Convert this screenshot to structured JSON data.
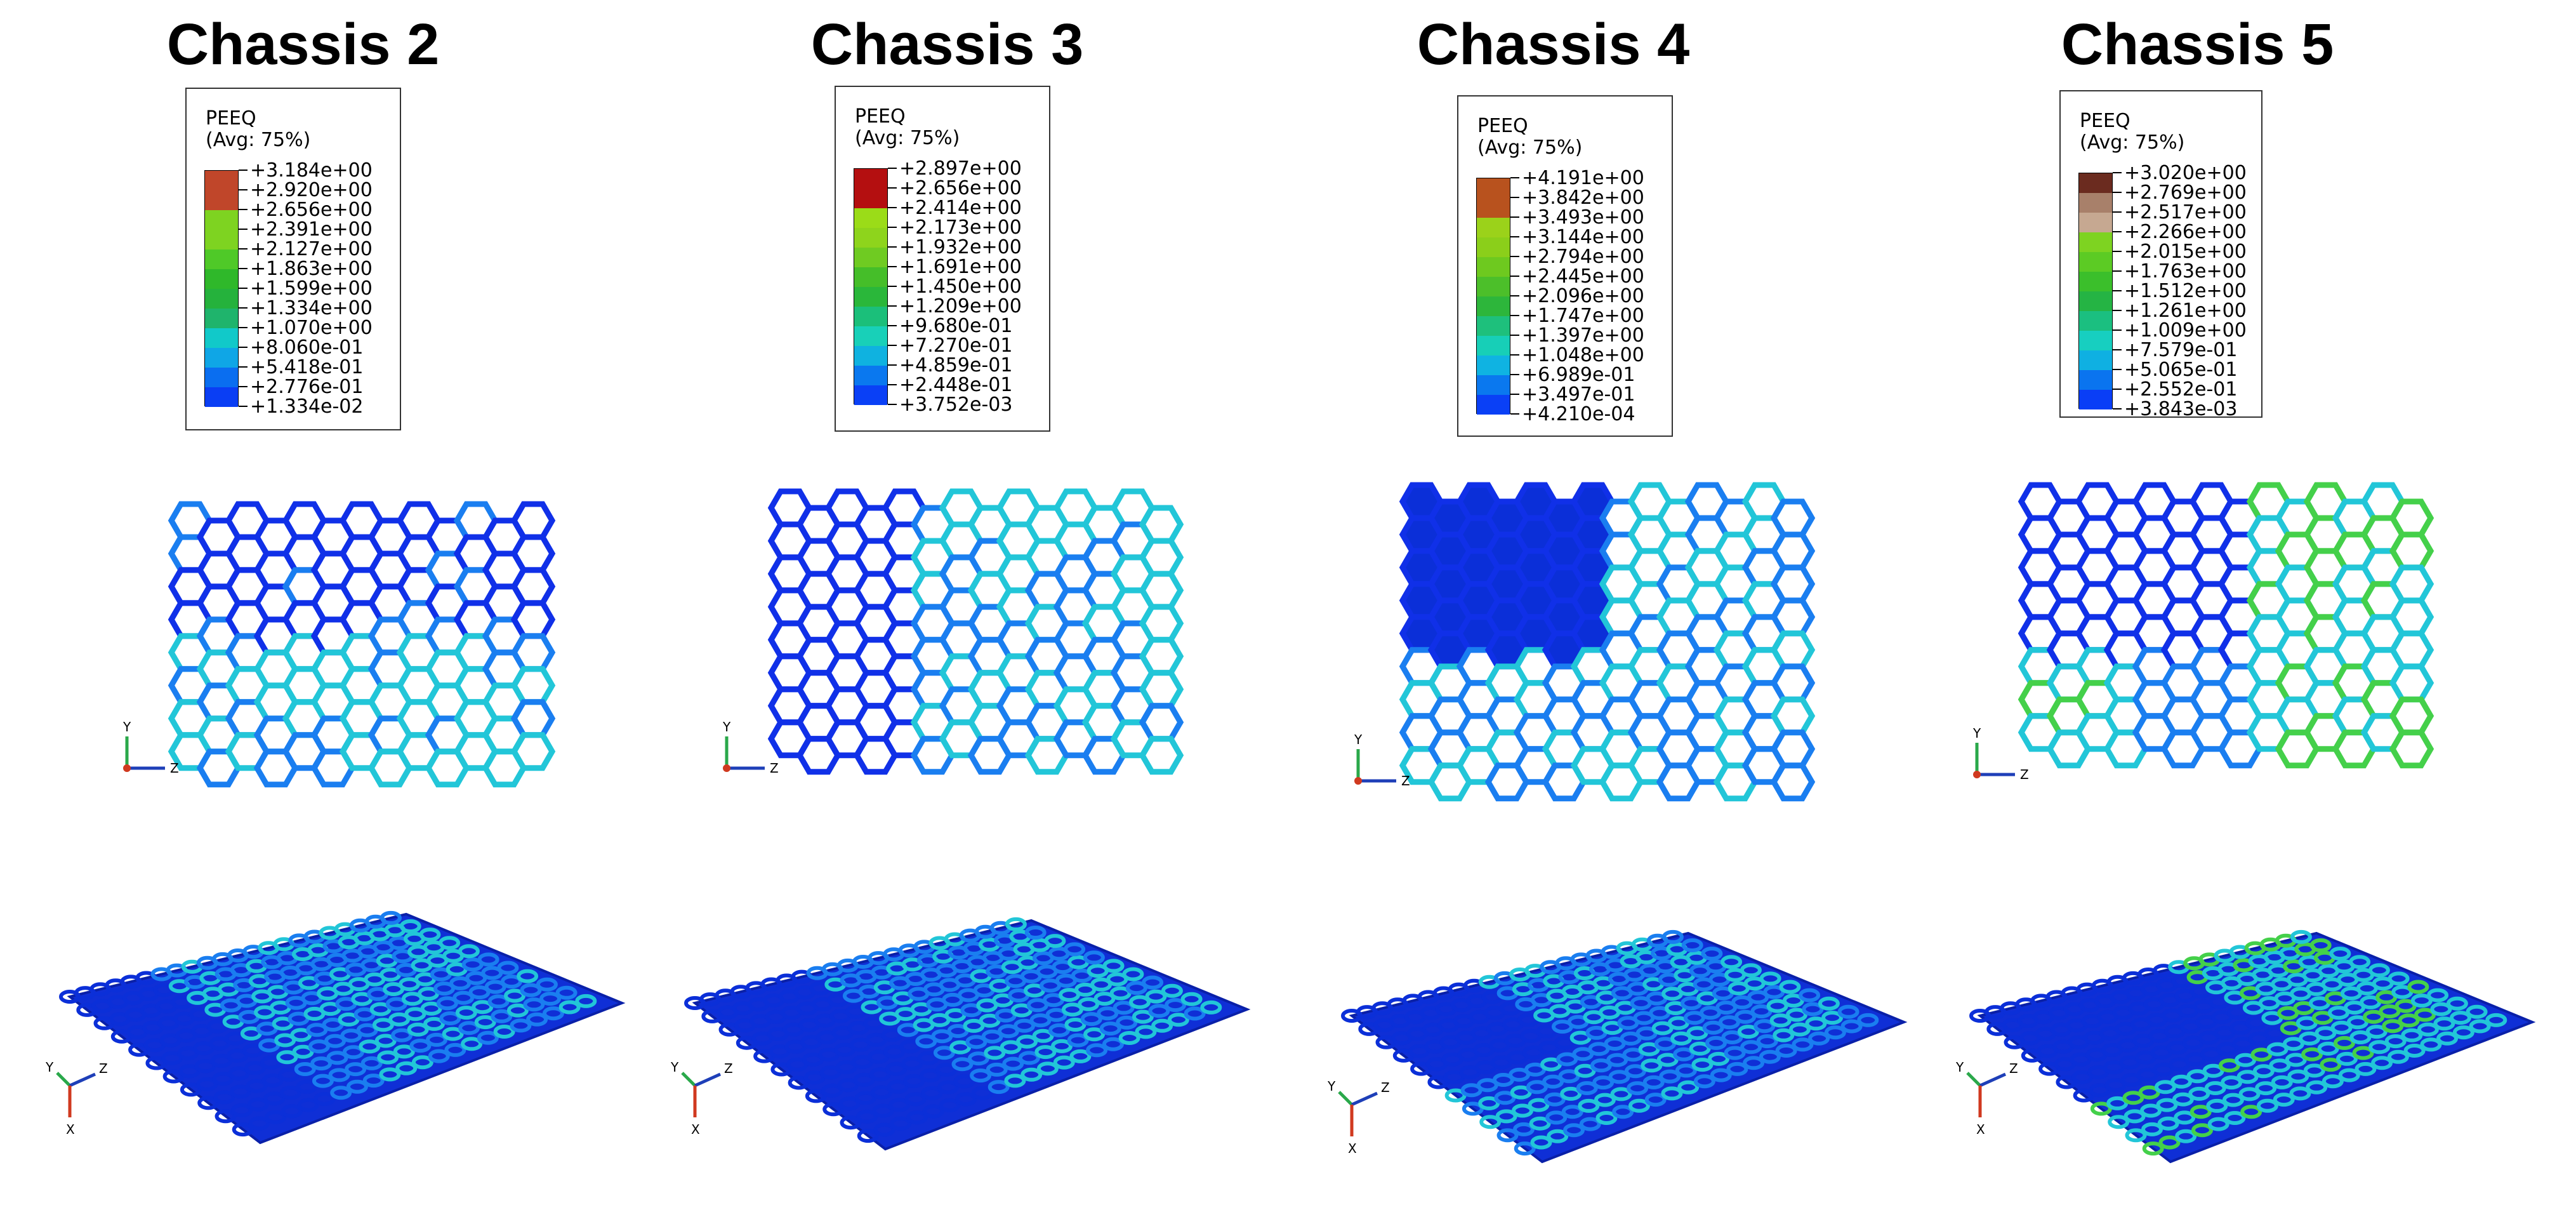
{
  "panels": [
    {
      "title": "Chassis 2",
      "legend": {
        "variable": "PEEQ",
        "avg": "(Avg: 75%)",
        "values": [
          "+3.184e+00",
          "+2.920e+00",
          "+2.656e+00",
          "+2.391e+00",
          "+2.127e+00",
          "+1.863e+00",
          "+1.599e+00",
          "+1.334e+00",
          "+1.070e+00",
          "+8.060e-01",
          "+5.418e-01",
          "+2.776e-01",
          "+1.334e-02"
        ],
        "colors": [
          "#c0462a",
          "#c0462a",
          "#7ed321",
          "#7ed321",
          "#4fc928",
          "#2fb82a",
          "#25b23c",
          "#1fb46c",
          "#11c9c9",
          "#0fa6e6",
          "#0a6ef0",
          "#0a3ef4"
        ]
      },
      "front_axes": {
        "vertical": "Y",
        "horizontal": "Z"
      },
      "iso_axes": {
        "a": "Y",
        "b": "Z",
        "c": "X"
      }
    },
    {
      "title": "Chassis 3",
      "legend": {
        "variable": "PEEQ",
        "avg": "(Avg: 75%)",
        "values": [
          "+2.897e+00",
          "+2.656e+00",
          "+2.414e+00",
          "+2.173e+00",
          "+1.932e+00",
          "+1.691e+00",
          "+1.450e+00",
          "+1.209e+00",
          "+9.680e-01",
          "+7.270e-01",
          "+4.859e-01",
          "+2.448e-01",
          "+3.752e-03"
        ],
        "colors": [
          "#b40f10",
          "#b40f10",
          "#9bdc18",
          "#8ed41c",
          "#6fcb22",
          "#45be29",
          "#2ab73a",
          "#1bbf7a",
          "#18d0b8",
          "#0fb2e0",
          "#0a78ef",
          "#0a40f6"
        ]
      },
      "front_axes": {
        "vertical": "Y",
        "horizontal": "Z"
      },
      "iso_axes": {
        "a": "Y",
        "b": "Z",
        "c": "X"
      }
    },
    {
      "title": "Chassis 4",
      "legend": {
        "variable": "PEEQ",
        "avg": "(Avg: 75%)",
        "values": [
          "+4.191e+00",
          "+3.842e+00",
          "+3.493e+00",
          "+3.144e+00",
          "+2.794e+00",
          "+2.445e+00",
          "+2.096e+00",
          "+1.747e+00",
          "+1.397e+00",
          "+1.048e+00",
          "+6.989e-01",
          "+3.497e-01",
          "+4.210e-04"
        ],
        "colors": [
          "#b8521e",
          "#b8521e",
          "#9bd21a",
          "#8bcf1a",
          "#6ec91f",
          "#4cbf2a",
          "#2db63b",
          "#1ec07c",
          "#17cfb7",
          "#0fb3e2",
          "#0a78ef",
          "#0a40f6"
        ]
      },
      "front_axes": {
        "vertical": "Y",
        "horizontal": "Z"
      },
      "iso_axes": {
        "a": "Y",
        "b": "Z",
        "c": "X"
      }
    },
    {
      "title": "Chassis 5",
      "legend": {
        "variable": "PEEQ",
        "avg": "(Avg: 75%)",
        "values": [
          "+3.020e+00",
          "+2.769e+00",
          "+2.517e+00",
          "+2.266e+00",
          "+2.015e+00",
          "+1.763e+00",
          "+1.512e+00",
          "+1.261e+00",
          "+1.009e+00",
          "+7.579e-01",
          "+5.065e-01",
          "+2.552e-01",
          "+3.843e-03"
        ],
        "colors": [
          "#6b2b1f",
          "#a8806a",
          "#c6a891",
          "#7ed321",
          "#5ccb24",
          "#3bbf2b",
          "#25b444",
          "#1bbf80",
          "#17cfc0",
          "#0fb0e2",
          "#0a74ef",
          "#0a3ef6"
        ]
      },
      "front_axes": {
        "vertical": "Y",
        "horizontal": "Z"
      },
      "iso_axes": {
        "a": "Y",
        "b": "Z",
        "c": "X"
      }
    }
  ]
}
